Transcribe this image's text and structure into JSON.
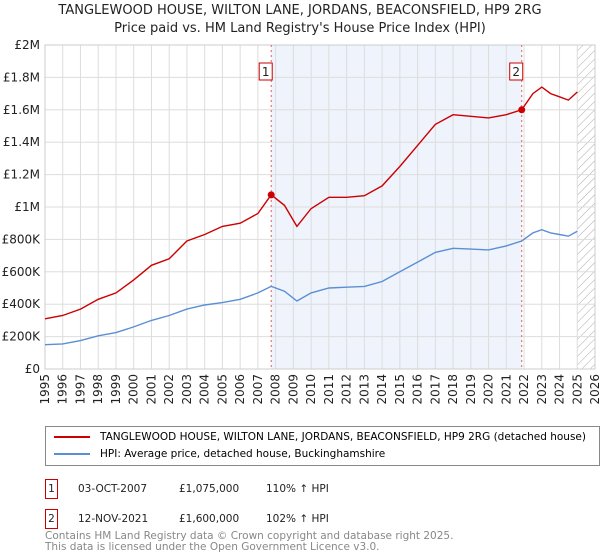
{
  "chart_data": {
    "type": "line",
    "title": "TANGLEWOOD HOUSE, WILTON LANE, JORDANS, BEACONSFIELD, HP9 2RG",
    "subtitle": "Price paid vs. HM Land Registry's House Price Index (HPI)",
    "xlim": [
      1995,
      2026
    ],
    "ylim": [
      0,
      2000000
    ],
    "x_ticks": [
      "1995",
      "1996",
      "1997",
      "1998",
      "1999",
      "2000",
      "2001",
      "2002",
      "2003",
      "2004",
      "2005",
      "2006",
      "2007",
      "2008",
      "2009",
      "2010",
      "2011",
      "2012",
      "2013",
      "2014",
      "2015",
      "2016",
      "2017",
      "2018",
      "2019",
      "2020",
      "2021",
      "2022",
      "2023",
      "2024",
      "2025",
      "2026"
    ],
    "y_ticks": [
      {
        "v": 0,
        "label": "£0"
      },
      {
        "v": 200000,
        "label": "£200K"
      },
      {
        "v": 400000,
        "label": "£400K"
      },
      {
        "v": 600000,
        "label": "£600K"
      },
      {
        "v": 800000,
        "label": "£800K"
      },
      {
        "v": 1000000,
        "label": "£1M"
      },
      {
        "v": 1200000,
        "label": "£1.2M"
      },
      {
        "v": 1400000,
        "label": "£1.4M"
      },
      {
        "v": 1600000,
        "label": "£1.6M"
      },
      {
        "v": 1800000,
        "label": "£1.8M"
      },
      {
        "v": 2000000,
        "label": "£2M"
      }
    ],
    "grid": true,
    "series": [
      {
        "name": "TANGLEWOOD HOUSE, WILTON LANE, JORDANS, BEACONSFIELD, HP9 2RG (detached house)",
        "color": "#cc0000",
        "x": [
          1995,
          1996,
          1997,
          1998,
          1999,
          2000,
          2001,
          2002,
          2003,
          2004,
          2005,
          2006,
          2007,
          2007.75,
          2008.5,
          2009.2,
          2010,
          2011,
          2012,
          2013,
          2014,
          2015,
          2016,
          2017,
          2018,
          2019,
          2020,
          2021,
          2021.87,
          2022.5,
          2023,
          2023.5,
          2024,
          2024.5,
          2025
        ],
        "values": [
          310000,
          330000,
          370000,
          430000,
          470000,
          550000,
          640000,
          680000,
          790000,
          830000,
          880000,
          900000,
          960000,
          1075000,
          1010000,
          880000,
          990000,
          1060000,
          1060000,
          1070000,
          1130000,
          1250000,
          1380000,
          1510000,
          1570000,
          1560000,
          1550000,
          1570000,
          1600000,
          1700000,
          1740000,
          1700000,
          1680000,
          1660000,
          1710000
        ]
      },
      {
        "name": "HPI: Average price, detached house, Buckinghamshire",
        "color": "#5b8fd4",
        "x": [
          1995,
          1996,
          1997,
          1998,
          1999,
          2000,
          2001,
          2002,
          2003,
          2004,
          2005,
          2006,
          2007,
          2007.75,
          2008.5,
          2009.2,
          2010,
          2011,
          2012,
          2013,
          2014,
          2015,
          2016,
          2017,
          2018,
          2019,
          2020,
          2021,
          2021.87,
          2022.5,
          2023,
          2023.5,
          2024,
          2024.5,
          2025
        ],
        "values": [
          150000,
          155000,
          175000,
          205000,
          225000,
          260000,
          300000,
          330000,
          370000,
          395000,
          410000,
          430000,
          470000,
          510000,
          480000,
          420000,
          470000,
          500000,
          505000,
          510000,
          540000,
          600000,
          660000,
          720000,
          745000,
          740000,
          735000,
          760000,
          790000,
          840000,
          860000,
          840000,
          830000,
          820000,
          850000
        ]
      }
    ],
    "annotations": [
      {
        "label": "1",
        "x": 2007.75,
        "value": 1075000
      },
      {
        "label": "2",
        "x": 2021.87,
        "value": 1600000
      }
    ],
    "shaded_range": [
      2007.75,
      2021.87
    ],
    "hatched_from": 2025.0,
    "legend_placement": "below"
  },
  "sales": [
    {
      "num": "1",
      "date": "03-OCT-2007",
      "price": "£1,075,000",
      "hpi": "110% ↑ HPI"
    },
    {
      "num": "2",
      "date": "12-NOV-2021",
      "price": "£1,600,000",
      "hpi": "102% ↑ HPI"
    }
  ],
  "footer": {
    "line1": "Contains HM Land Registry data © Crown copyright and database right 2025.",
    "line2": "This data is licensed under the Open Government Licence v3.0."
  }
}
